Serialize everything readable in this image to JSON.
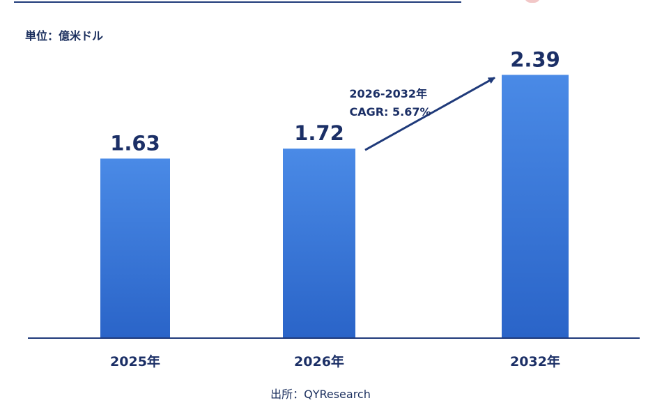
{
  "unit_label": "単位：億米ドル",
  "source_label": "出所：QYResearch",
  "colors": {
    "bar_top": "#4a8ae6",
    "bar_bottom": "#2a64c8",
    "axis": "#1f3a7a",
    "text": "#1b2f66"
  },
  "chart_data": {
    "type": "bar",
    "title": "",
    "xlabel": "",
    "ylabel": "",
    "unit": "億米ドル",
    "categories": [
      "2025年",
      "2026年",
      "2032年"
    ],
    "values": [
      1.63,
      1.72,
      2.39
    ],
    "value_labels": [
      "1.63",
      "1.72",
      "2.39"
    ],
    "ylim": [
      0,
      2.6
    ],
    "grid": false,
    "annotation": {
      "lines": [
        "2026-2032年",
        "CAGR: 5.67%"
      ],
      "from_category": "2026年",
      "to_category": "2032年"
    }
  }
}
